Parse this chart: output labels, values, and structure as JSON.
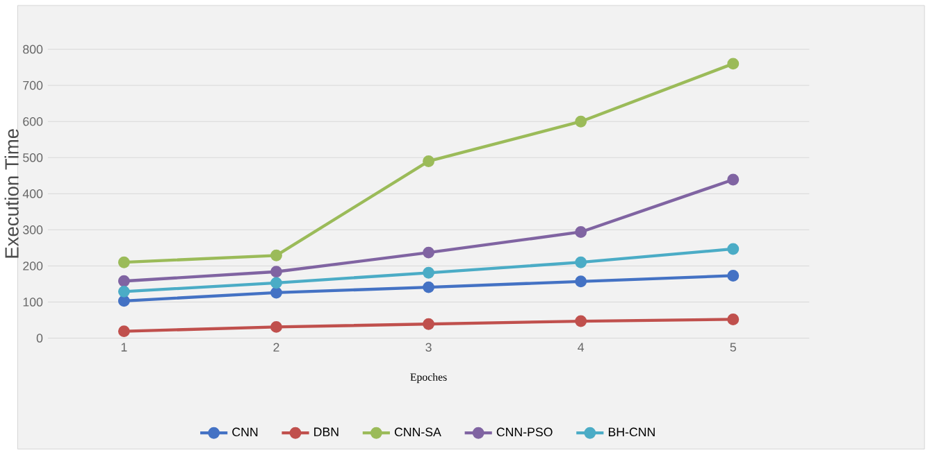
{
  "chart_data": {
    "type": "line",
    "xlabel": "Epoches",
    "ylabel": "Execution Time",
    "categories": [
      "1",
      "2",
      "3",
      "4",
      "5"
    ],
    "series": [
      {
        "name": "CNN",
        "color": "#4472c4",
        "values": [
          103,
          126,
          141,
          157,
          173
        ]
      },
      {
        "name": "DBN",
        "color": "#c0504d",
        "values": [
          19,
          31,
          39,
          47,
          52
        ]
      },
      {
        "name": "CNN-SA",
        "color": "#9bbb59",
        "values": [
          210,
          229,
          490,
          600,
          760
        ]
      },
      {
        "name": "CNN-PSO",
        "color": "#8064a2",
        "values": [
          158,
          184,
          237,
          294,
          439
        ]
      },
      {
        "name": "BH-CNN",
        "color": "#4bacc6",
        "values": [
          129,
          153,
          181,
          210,
          247
        ]
      }
    ],
    "ylim": [
      0,
      800
    ],
    "yticks": [
      0,
      100,
      200,
      300,
      400,
      500,
      600,
      700,
      800
    ],
    "grid": "y",
    "legend": "bottom",
    "marker": "circle",
    "line_style": "solid"
  }
}
